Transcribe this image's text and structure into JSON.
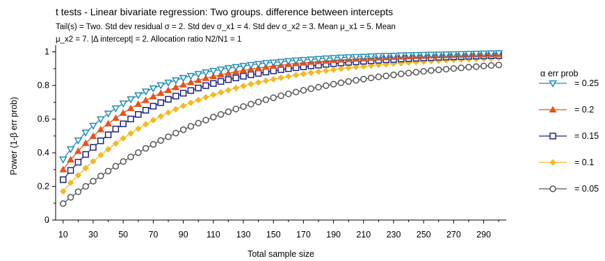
{
  "chart_data": {
    "type": "line",
    "title": "t tests - Linear bivariate regression: Two groups. difference between intercepts",
    "subtitle_lines": [
      "Tail(s) = Two. Std dev residual σ = 2. Std dev σ_x1 = 4. Std dev σ_x2 = 3. Mean μ_x1 = 5. Mean",
      "μ_x2 = 7. |Δ intercept| = 2. Allocation ratio N2/N1 = 1"
    ],
    "xlabel": "Total sample size",
    "ylabel": "Power (1-β err prob)",
    "xlim": [
      5,
      305
    ],
    "ylim": [
      0,
      1.04
    ],
    "x_ticks": [
      10,
      30,
      50,
      70,
      90,
      110,
      130,
      150,
      170,
      190,
      210,
      230,
      250,
      270,
      290
    ],
    "x_tick_labels": [
      "10",
      "30",
      "50",
      "70",
      "90",
      "110",
      "130",
      "150",
      "170",
      "190",
      "210",
      "230",
      "250",
      "270",
      "290"
    ],
    "y_ticks": [
      0,
      0.2,
      0.4,
      0.6,
      0.8,
      1
    ],
    "y_tick_labels": [
      "0",
      "0.2",
      "0.4",
      "0.6",
      "0.8",
      "1"
    ],
    "grid": false,
    "legend": {
      "title": "α err prob",
      "position": "right"
    },
    "x": [
      10,
      15,
      20,
      25,
      30,
      35,
      40,
      45,
      50,
      55,
      60,
      65,
      70,
      75,
      80,
      85,
      90,
      95,
      100,
      105,
      110,
      115,
      120,
      125,
      130,
      135,
      140,
      145,
      150,
      155,
      160,
      165,
      170,
      175,
      180,
      185,
      190,
      195,
      200,
      205,
      210,
      215,
      220,
      225,
      230,
      235,
      240,
      245,
      250,
      255,
      260,
      265,
      270,
      275,
      280,
      285,
      290,
      295,
      300
    ],
    "series": [
      {
        "name": "= 0.25",
        "color": "#1f8cb5",
        "marker": "triangle-down",
        "values": [
          0.36,
          0.421,
          0.473,
          0.52,
          0.561,
          0.599,
          0.633,
          0.664,
          0.693,
          0.718,
          0.742,
          0.764,
          0.783,
          0.801,
          0.817,
          0.831,
          0.845,
          0.857,
          0.868,
          0.878,
          0.887,
          0.895,
          0.903,
          0.91,
          0.916,
          0.922,
          0.928,
          0.933,
          0.937,
          0.941,
          0.945,
          0.949,
          0.952,
          0.955,
          0.958,
          0.961,
          0.963,
          0.966,
          0.968,
          0.97,
          0.971,
          0.973,
          0.975,
          0.976,
          0.977,
          0.979,
          0.98,
          0.981,
          0.982,
          0.983,
          0.984,
          0.985,
          0.986,
          0.987,
          0.988,
          0.989,
          0.99,
          0.991,
          0.992
        ]
      },
      {
        "name": "= 0.2",
        "color": "#e8521c",
        "marker": "triangle-up",
        "values": [
          0.3,
          0.359,
          0.41,
          0.457,
          0.499,
          0.538,
          0.573,
          0.606,
          0.636,
          0.664,
          0.689,
          0.712,
          0.734,
          0.754,
          0.772,
          0.789,
          0.804,
          0.818,
          0.831,
          0.843,
          0.854,
          0.864,
          0.873,
          0.882,
          0.89,
          0.897,
          0.904,
          0.91,
          0.916,
          0.921,
          0.926,
          0.931,
          0.935,
          0.939,
          0.943,
          0.946,
          0.95,
          0.953,
          0.955,
          0.958,
          0.96,
          0.963,
          0.965,
          0.967,
          0.969,
          0.971,
          0.972,
          0.974,
          0.975,
          0.977,
          0.978,
          0.979,
          0.98,
          0.981,
          0.982,
          0.983,
          0.984,
          0.985,
          0.986
        ]
      },
      {
        "name": "= 0.15",
        "color": "#1a237e",
        "marker": "square",
        "values": [
          0.24,
          0.295,
          0.344,
          0.39,
          0.432,
          0.471,
          0.507,
          0.541,
          0.572,
          0.601,
          0.628,
          0.653,
          0.677,
          0.698,
          0.718,
          0.737,
          0.754,
          0.77,
          0.785,
          0.799,
          0.812,
          0.824,
          0.835,
          0.845,
          0.855,
          0.864,
          0.872,
          0.88,
          0.887,
          0.894,
          0.9,
          0.906,
          0.911,
          0.917,
          0.921,
          0.926,
          0.93,
          0.934,
          0.938,
          0.941,
          0.944,
          0.947,
          0.95,
          0.953,
          0.955,
          0.958,
          0.96,
          0.962,
          0.964,
          0.966,
          0.968,
          0.969,
          0.971,
          0.972,
          0.974,
          0.975,
          0.976,
          0.977,
          0.978
        ]
      },
      {
        "name": "= 0.1",
        "color": "#f5b921",
        "marker": "diamond",
        "values": [
          0.17,
          0.222,
          0.266,
          0.309,
          0.349,
          0.386,
          0.421,
          0.455,
          0.486,
          0.515,
          0.543,
          0.569,
          0.594,
          0.617,
          0.639,
          0.659,
          0.679,
          0.697,
          0.714,
          0.73,
          0.745,
          0.759,
          0.772,
          0.785,
          0.797,
          0.808,
          0.818,
          0.828,
          0.837,
          0.846,
          0.854,
          0.862,
          0.869,
          0.876,
          0.882,
          0.888,
          0.894,
          0.9,
          0.905,
          0.91,
          0.914,
          0.918,
          0.922,
          0.926,
          0.93,
          0.933,
          0.936,
          0.939,
          0.942,
          0.945,
          0.947,
          0.95,
          0.952,
          0.954,
          0.956,
          0.958,
          0.96,
          0.962,
          0.964
        ]
      },
      {
        "name": "= 0.05",
        "color": "#555555",
        "marker": "circle",
        "values": [
          0.098,
          0.135,
          0.168,
          0.2,
          0.231,
          0.262,
          0.291,
          0.32,
          0.348,
          0.375,
          0.401,
          0.426,
          0.45,
          0.473,
          0.495,
          0.517,
          0.537,
          0.557,
          0.576,
          0.594,
          0.612,
          0.628,
          0.644,
          0.66,
          0.675,
          0.689,
          0.702,
          0.715,
          0.727,
          0.739,
          0.75,
          0.761,
          0.771,
          0.781,
          0.79,
          0.799,
          0.808,
          0.816,
          0.824,
          0.831,
          0.838,
          0.845,
          0.851,
          0.857,
          0.863,
          0.869,
          0.874,
          0.879,
          0.884,
          0.889,
          0.893,
          0.897,
          0.901,
          0.905,
          0.909,
          0.912,
          0.916,
          0.919,
          0.922
        ]
      }
    ]
  }
}
